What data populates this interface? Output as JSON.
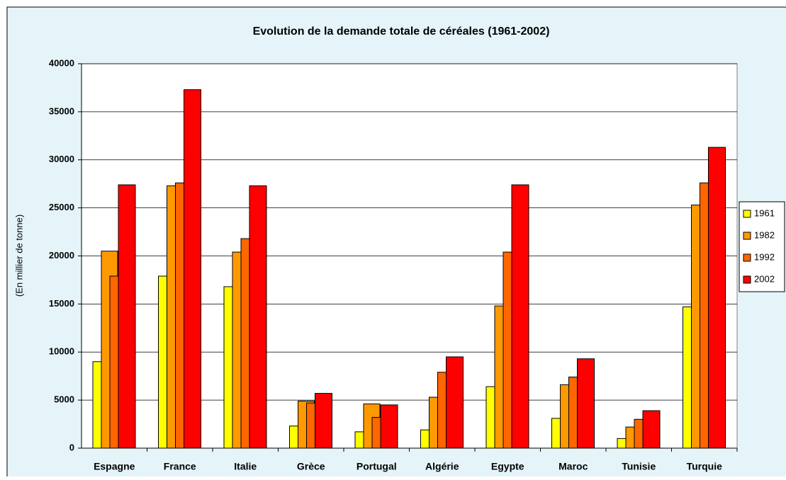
{
  "chart_data": {
    "type": "bar",
    "title": "Evolution de la demande totale de céréales (1961-2002)",
    "y_label": "(En millier de tonne)",
    "categories": [
      "Espagne",
      "France",
      "Italie",
      "Grèce",
      "Portugal",
      "Algérie",
      "Egypte",
      "Maroc",
      "Tunisie",
      "Turquie"
    ],
    "series": [
      {
        "name": "1961",
        "color": "#ffff00",
        "values": [
          9000,
          17900,
          16800,
          2300,
          1700,
          1900,
          6400,
          3100,
          1000,
          14700
        ]
      },
      {
        "name": "1982",
        "color": "#ff9900",
        "values": [
          20500,
          27300,
          20400,
          4900,
          4600,
          5300,
          14800,
          6600,
          2200,
          25300
        ]
      },
      {
        "name": "1992",
        "color": "#ff6600",
        "values": [
          17900,
          27600,
          21800,
          4700,
          3200,
          7900,
          20400,
          7400,
          3000,
          27600
        ]
      },
      {
        "name": "2002",
        "color": "#ff0000",
        "values": [
          27400,
          37300,
          27300,
          5700,
          4500,
          9500,
          27400,
          9300,
          3900,
          31300
        ]
      }
    ],
    "ylim": [
      0,
      40000
    ],
    "yticks": [
      0,
      5000,
      10000,
      15000,
      20000,
      25000,
      30000,
      35000,
      40000
    ],
    "grid": true,
    "legend": "right"
  }
}
